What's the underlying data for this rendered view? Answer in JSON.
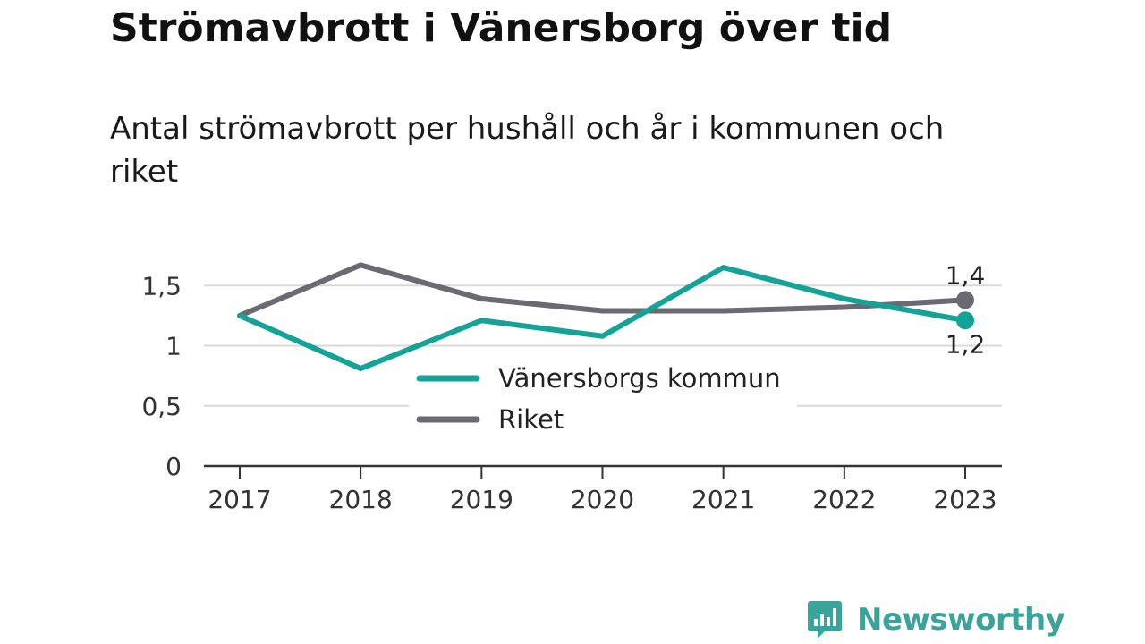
{
  "title": "Strömavbrott i Vänersborg över tid",
  "subtitle": "Antal strömavbrott per hushåll och år i kommunen och riket",
  "brand": {
    "name": "Newsworthy",
    "icon": "newsworthy-logo-icon",
    "color": "#3aa39a"
  },
  "chart_data": {
    "type": "line",
    "title": "Strömavbrott i Vänersborg över tid",
    "subtitle": "Antal strömavbrott per hushåll och år i kommunen och riket",
    "x": [
      "2017",
      "2018",
      "2019",
      "2020",
      "2021",
      "2022",
      "2023"
    ],
    "ylim": [
      0,
      1.75
    ],
    "yticks": [
      0,
      0.5,
      1,
      1.5
    ],
    "ytick_labels": [
      "0",
      "0,5",
      "1",
      "1,5"
    ],
    "grid": true,
    "legend_placement": "center",
    "series": [
      {
        "name": "Vänersborgs kommun",
        "color": "#16a397",
        "values": [
          1.25,
          0.81,
          1.21,
          1.08,
          1.65,
          1.39,
          1.21
        ],
        "end_label": "1,2"
      },
      {
        "name": "Riket",
        "color": "#6b6a73",
        "values": [
          1.25,
          1.67,
          1.39,
          1.29,
          1.29,
          1.32,
          1.38
        ],
        "end_label": "1,4"
      }
    ]
  }
}
